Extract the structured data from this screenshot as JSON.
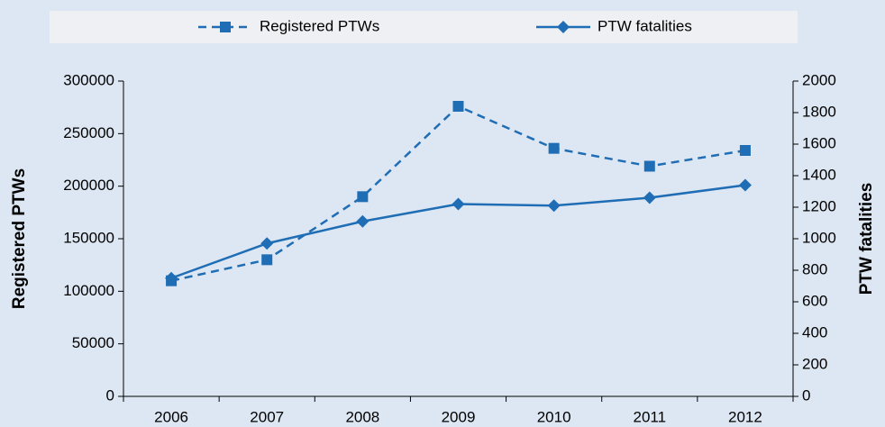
{
  "chart_data": {
    "type": "line",
    "categories": [
      "2006",
      "2007",
      "2008",
      "2009",
      "2010",
      "2011",
      "2012"
    ],
    "series": [
      {
        "name": "Registered PTWs",
        "color": "#1f6db4",
        "dash": true,
        "marker": "square",
        "values": [
          110000,
          130000,
          190000,
          276000,
          236000,
          219000,
          234000
        ]
      },
      {
        "name": "PTW fatalities",
        "color": "#1f6db4",
        "dash": false,
        "marker": "diamond",
        "axis": "y2",
        "values": [
          750,
          970,
          1110,
          1220,
          1210,
          1260,
          1340
        ]
      }
    ],
    "ylabel": "Registered PTWs",
    "y2label": "PTW fatalities",
    "ylim": [
      0,
      300000
    ],
    "yticks": [
      0,
      50000,
      100000,
      150000,
      200000,
      250000,
      300000
    ],
    "y2lim": [
      0,
      2000
    ],
    "y2ticks": [
      0,
      200,
      400,
      600,
      800,
      1000,
      1200,
      1400,
      1600,
      1800,
      2000
    ],
    "legend": "top"
  }
}
